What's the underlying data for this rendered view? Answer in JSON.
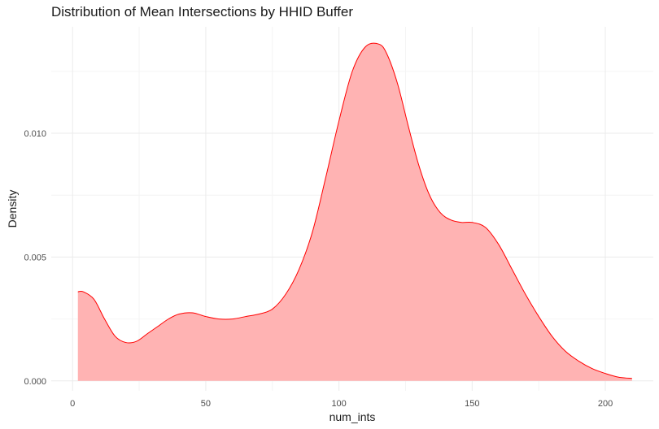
{
  "chart_data": {
    "type": "area",
    "title": "Distribution of Mean Intersections by HHID Buffer",
    "xlabel": "num_ints",
    "ylabel": "Density",
    "xlim": [
      -8,
      218
    ],
    "ylim": [
      -0.0004,
      0.0143
    ],
    "x_ticks": [
      0,
      50,
      100,
      150,
      200
    ],
    "x_tick_labels": [
      "0",
      "50",
      "100",
      "150",
      "200"
    ],
    "y_ticks": [
      0,
      0.005,
      0.01
    ],
    "y_tick_labels": [
      "0.000",
      "0.005",
      "0.010"
    ],
    "grid": true,
    "legend": "none",
    "fill_color": "#ffb3b3",
    "line_color": "#ff0000",
    "series": [
      {
        "x": [
          2,
          4,
          8,
          12,
          16,
          20,
          24,
          28,
          32,
          36,
          40,
          45,
          50,
          55,
          60,
          65,
          70,
          75,
          80,
          85,
          90,
          95,
          100,
          105,
          110,
          115,
          118,
          122,
          126,
          130,
          134,
          138,
          142,
          146,
          150,
          155,
          160,
          165,
          170,
          175,
          180,
          185,
          190,
          195,
          200,
          205,
          210
        ],
        "y": [
          0.0036,
          0.0036,
          0.0033,
          0.0025,
          0.0018,
          0.00155,
          0.0016,
          0.0019,
          0.0022,
          0.0025,
          0.0027,
          0.00275,
          0.0026,
          0.0025,
          0.0025,
          0.0026,
          0.0027,
          0.0029,
          0.0035,
          0.0045,
          0.006,
          0.0082,
          0.0105,
          0.0125,
          0.0135,
          0.0136,
          0.0132,
          0.012,
          0.0103,
          0.0087,
          0.0075,
          0.0068,
          0.0065,
          0.0064,
          0.0064,
          0.0062,
          0.0055,
          0.0045,
          0.0035,
          0.0026,
          0.0018,
          0.0012,
          0.0008,
          0.0005,
          0.0003,
          0.00015,
          0.0001
        ]
      }
    ]
  }
}
